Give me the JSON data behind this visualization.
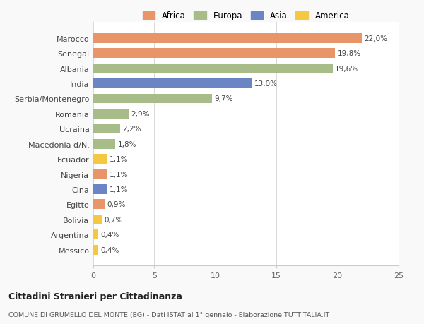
{
  "categories": [
    "Messico",
    "Argentina",
    "Bolivia",
    "Egitto",
    "Cina",
    "Nigeria",
    "Ecuador",
    "Macedonia d/N.",
    "Ucraina",
    "Romania",
    "Serbia/Montenegro",
    "India",
    "Albania",
    "Senegal",
    "Marocco"
  ],
  "values": [
    0.4,
    0.4,
    0.7,
    0.9,
    1.1,
    1.1,
    1.1,
    1.8,
    2.2,
    2.9,
    9.7,
    13.0,
    19.6,
    19.8,
    22.0
  ],
  "colors": [
    "#f5c842",
    "#f5c842",
    "#f5c842",
    "#e8956a",
    "#6b84c4",
    "#e8956a",
    "#f5c842",
    "#a8bc8a",
    "#a8bc8a",
    "#a8bc8a",
    "#a8bc8a",
    "#6b84c4",
    "#a8bc8a",
    "#e8956a",
    "#e8956a"
  ],
  "labels": [
    "0,4%",
    "0,4%",
    "0,7%",
    "0,9%",
    "1,1%",
    "1,1%",
    "1,1%",
    "1,8%",
    "2,2%",
    "2,9%",
    "9,7%",
    "13,0%",
    "19,6%",
    "19,8%",
    "22,0%"
  ],
  "legend_labels": [
    "Africa",
    "Europa",
    "Asia",
    "America"
  ],
  "legend_colors": [
    "#e8956a",
    "#a8bc8a",
    "#6b84c4",
    "#f5c842"
  ],
  "title1": "Cittadini Stranieri per Cittadinanza",
  "title2": "COMUNE DI GRUMELLO DEL MONTE (BG) - Dati ISTAT al 1° gennaio - Elaborazione TUTTITALIA.IT",
  "xlim": [
    0,
    25
  ],
  "xticks": [
    0,
    5,
    10,
    15,
    20,
    25
  ],
  "background_color": "#f9f9f9",
  "bar_background": "#ffffff"
}
